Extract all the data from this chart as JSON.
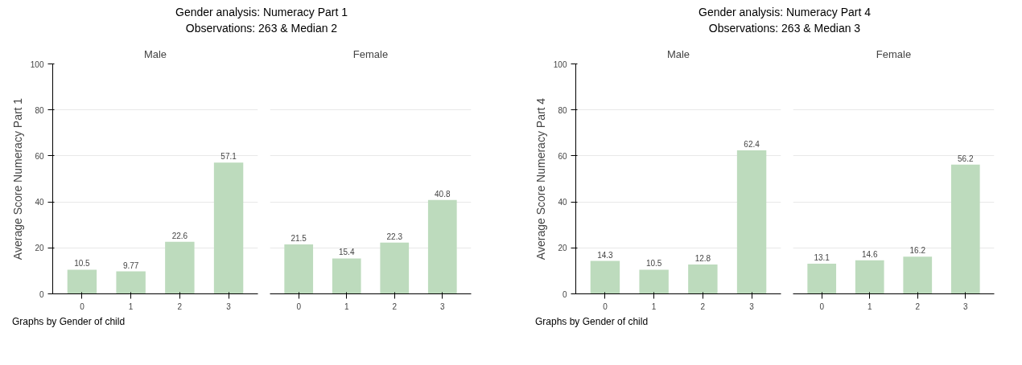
{
  "chart_data": [
    {
      "type": "bar",
      "title": "Male",
      "annotations": [
        "Gender analysis: Numeracy Part 1",
        "Observations: 263 & Median 2",
        "Graphs by Gender of child"
      ],
      "ylabel": "Average Score Numeracy Part 1",
      "categories": [
        "0",
        "1",
        "2",
        "3"
      ],
      "values": [
        10.5,
        9.77,
        22.6,
        57.1
      ],
      "color": "#bddbbd",
      "ylim": [
        0,
        100
      ],
      "yticks": [
        0,
        20,
        40,
        60,
        80,
        100
      ],
      "grid": "y",
      "data_labels": true
    },
    {
      "type": "bar",
      "title": "Female",
      "categories": [
        "0",
        "1",
        "2",
        "3"
      ],
      "values": [
        21.5,
        15.4,
        22.3,
        40.8
      ],
      "color": "#bddbbd",
      "ylim": [
        0,
        100
      ],
      "yticks": [
        0,
        20,
        40,
        60,
        80,
        100
      ],
      "grid": "y",
      "data_labels": true,
      "tick_labels": "x"
    },
    {
      "type": "bar",
      "title": "Male",
      "annotations": [
        "Gender analysis: Numeracy Part 4",
        "Observations: 263 & Median 3",
        "Graphs by Gender of child"
      ],
      "ylabel": "Average Score Numeracy Part 4",
      "categories": [
        "0",
        "1",
        "2",
        "3"
      ],
      "values": [
        14.3,
        10.5,
        12.8,
        62.4
      ],
      "color": "#bddbbd",
      "ylim": [
        0,
        100
      ],
      "yticks": [
        0,
        20,
        40,
        60,
        80,
        100
      ],
      "grid": "y",
      "data_labels": true
    },
    {
      "type": "bar",
      "title": "Female",
      "categories": [
        "0",
        "1",
        "2",
        "3"
      ],
      "values": [
        13.1,
        14.6,
        16.2,
        56.2
      ],
      "color": "#bddbbd",
      "ylim": [
        0,
        100
      ],
      "yticks": [
        0,
        20,
        40,
        60,
        80,
        100
      ],
      "grid": "y",
      "data_labels": true,
      "tick_labels": "x"
    }
  ]
}
